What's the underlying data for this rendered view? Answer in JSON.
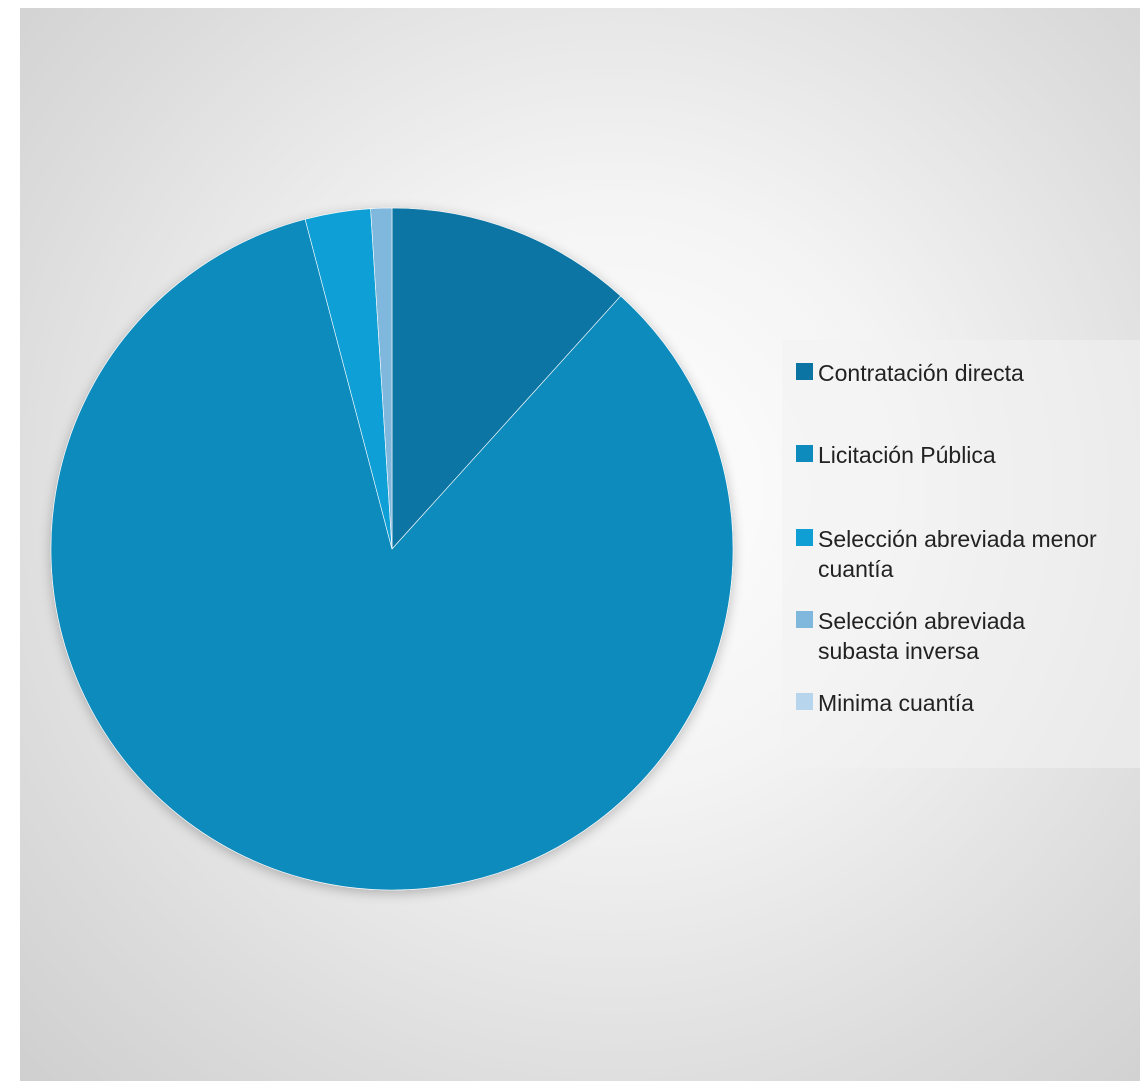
{
  "chart_data": {
    "type": "pie",
    "title": "",
    "legend_position": "right",
    "categories": [
      "Contratación directa",
      "Licitación Pública",
      "Selección abreviada menor\ncuantía",
      "Selección abreviada\nsubasta inversa",
      "Minima cuantía"
    ],
    "values": [
      11.7,
      84.2,
      3.1,
      1.0,
      0.0
    ],
    "colors": [
      "#0b74a3",
      "#0e8bbd",
      "#0f9fd5",
      "#7fb7dd",
      "#b7d5ec"
    ]
  }
}
